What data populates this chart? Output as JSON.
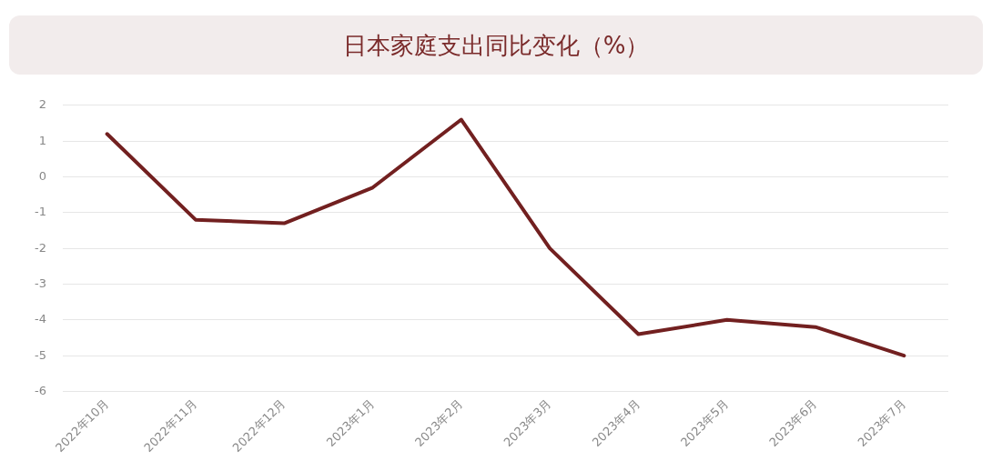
{
  "chart_data": {
    "type": "line",
    "title": "日本家庭支出同比变化（%）",
    "categories": [
      "2022年10月",
      "2022年11月",
      "2022年12月",
      "2023年1月",
      "2023年2月",
      "2023年3月",
      "2023年4月",
      "2023年5月",
      "2023年6月",
      "2023年7月"
    ],
    "series": [
      {
        "color": "#722020",
        "values": [
          1.2,
          -1.2,
          -1.3,
          -0.3,
          1.6,
          -2.0,
          -4.4,
          -4.0,
          -4.2,
          -5.0
        ]
      }
    ],
    "ylim": [
      -6,
      2
    ],
    "yticks": [
      -6,
      -5,
      -4,
      -3,
      -2,
      -1,
      0,
      1,
      2
    ],
    "grid": "y",
    "legend": false,
    "marker": "none",
    "line_style": "solid"
  }
}
